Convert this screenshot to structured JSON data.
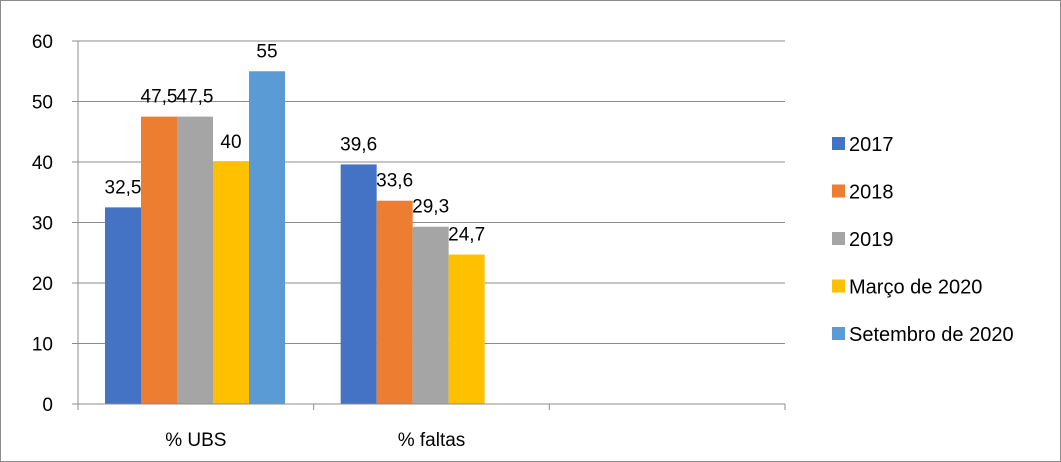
{
  "chart_data": {
    "type": "bar",
    "categories": [
      "% UBS",
      "% faltas",
      ""
    ],
    "series": [
      {
        "name": "2017",
        "color": "#4472C4",
        "values": [
          32.5,
          39.6,
          null
        ],
        "labels": [
          "32,5",
          "39,6",
          ""
        ]
      },
      {
        "name": "2018",
        "color": "#ED7D31",
        "values": [
          47.5,
          33.6,
          null
        ],
        "labels": [
          "47,5",
          "33,6",
          ""
        ]
      },
      {
        "name": "2019",
        "color": "#A5A5A5",
        "values": [
          47.5,
          29.3,
          null
        ],
        "labels": [
          "47,5",
          "29,3",
          ""
        ]
      },
      {
        "name": "Março de 2020",
        "color": "#FFC000",
        "values": [
          40,
          24.7,
          null
        ],
        "labels": [
          "40",
          "24,7",
          ""
        ]
      },
      {
        "name": "Setembro de 2020",
        "color": "#5B9BD5",
        "values": [
          55,
          null,
          null
        ],
        "labels": [
          "55",
          "",
          ""
        ]
      }
    ],
    "yticks": [
      "0",
      "10",
      "20",
      "30",
      "40",
      "50",
      "60"
    ],
    "ylim": [
      0,
      60
    ],
    "grid": true,
    "legend_position": "right",
    "title": "",
    "xlabel": "",
    "ylabel": ""
  }
}
